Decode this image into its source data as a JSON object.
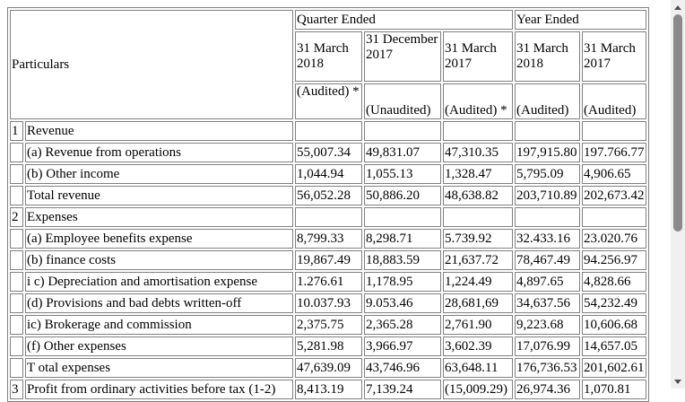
{
  "header": {
    "particulars": "Particulars",
    "quarter_ended": "Quarter Ended",
    "year_ended": "Year Ended",
    "dates": [
      "31 March 2018",
      "31 December 2017",
      "31 March 2017",
      "31 March 2018",
      "31 March 2017"
    ],
    "audit": [
      "(Audited) *",
      "(Unaudited)",
      "(Audited) *",
      "(Audited)",
      "(Audited)"
    ]
  },
  "rows": [
    {
      "no": "1",
      "label": "Revenue",
      "values": [
        "",
        "",
        "",
        "",
        ""
      ]
    },
    {
      "no": "",
      "label": "(a) Revenue from operations",
      "values": [
        "55,007.34",
        "49,831.07",
        "47,310.35",
        "197,915.80",
        "197.766.77"
      ]
    },
    {
      "no": "",
      "label": "(b) Other income",
      "values": [
        "1,044.94",
        "1,055.13",
        "1,328.47",
        "5,795.09",
        "4,906.65"
      ]
    },
    {
      "no": "",
      "label": "Total revenue",
      "values": [
        "56,052.28",
        "50,886.20",
        "48,638.82",
        "203,710.89",
        "202,673.42"
      ]
    },
    {
      "no": "2",
      "label": "Expenses",
      "values": [
        "",
        "",
        "",
        "",
        ""
      ]
    },
    {
      "no": "",
      "label": "(a) Employee benefits expense",
      "values": [
        "8,799.33",
        "8,298.71",
        "5.739.92",
        "32.433.16",
        "23.020.76"
      ]
    },
    {
      "no": "",
      "label": "(b) finance costs",
      "values": [
        "19,867.49",
        "18,883.59",
        "21,637.72",
        "78,467.49",
        "94.256.97"
      ]
    },
    {
      "no": "",
      "label": "i c) Depreciation and amortisation expense",
      "values": [
        "1.276.61",
        "1,178.95",
        "1,224.49",
        "4,897.65",
        "4,828.66"
      ]
    },
    {
      "no": "",
      "label": "(d) Provisions and bad debts written-off",
      "values": [
        "10.037.93",
        "9.053.46",
        "28,681,69",
        "34,637.56",
        "54,232.49"
      ]
    },
    {
      "no": "",
      "label": "ic) Brokerage and commission",
      "values": [
        "2,375.75",
        "2,365.28",
        "2,761.90",
        "9,223.68",
        "10,606.68"
      ]
    },
    {
      "no": "",
      "label": "(f) Other expenses",
      "values": [
        "5,281.98",
        "3,966.97",
        "3,602.39",
        "17,076.99",
        "14,657.05"
      ]
    },
    {
      "no": "",
      "label": "T otal expenses",
      "values": [
        "47,639.09",
        "43,746.96",
        "63,648.11",
        "176,736.53",
        "201,602.61"
      ]
    },
    {
      "no": "3",
      "label": "Profit from ordinary activities before tax (1-2)",
      "values": [
        "8,413.19",
        "7,139.24",
        "(15,009.29)",
        "26,974.36",
        "1,070.81"
      ]
    }
  ]
}
